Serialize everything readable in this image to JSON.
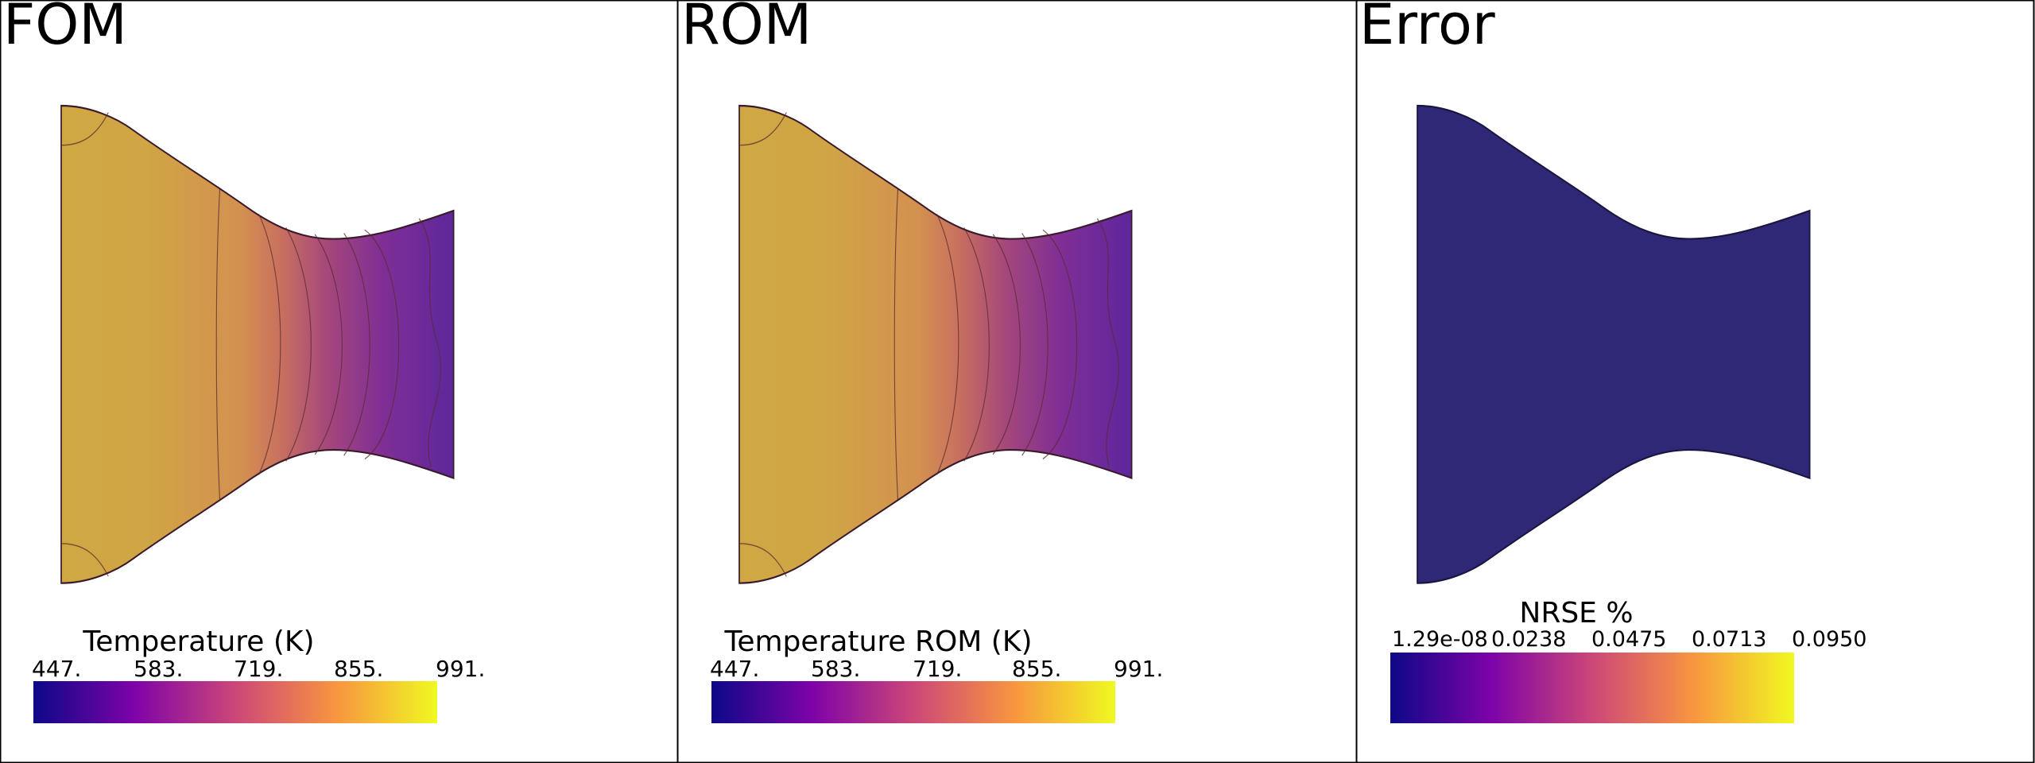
{
  "panels": [
    {
      "title": "FOM",
      "colorbar": {
        "title": "Temperature (K)",
        "ticks": [
          "447.",
          "583.",
          "719.",
          "855.",
          "991."
        ]
      }
    },
    {
      "title": "ROM",
      "colorbar": {
        "title": "Temperature ROM (K)",
        "ticks": [
          "447.",
          "583.",
          "719.",
          "855.",
          "991."
        ]
      }
    },
    {
      "title": "Error",
      "colorbar": {
        "title": "NRSE %",
        "ticks": [
          "1.29e-08",
          "0.0238",
          "0.0475",
          "0.0713",
          "0.0950"
        ]
      }
    }
  ],
  "colormap_stops": [
    "#0d0887",
    "#7e03a8",
    "#cc4778",
    "#f89540",
    "#f0f921"
  ],
  "field_colors": {
    "hot": "#cfa843",
    "mid": "#d98a5a",
    "cold": "#6a2a9c",
    "error_fill": "#2f2876",
    "contour": "#5a2a30"
  }
}
